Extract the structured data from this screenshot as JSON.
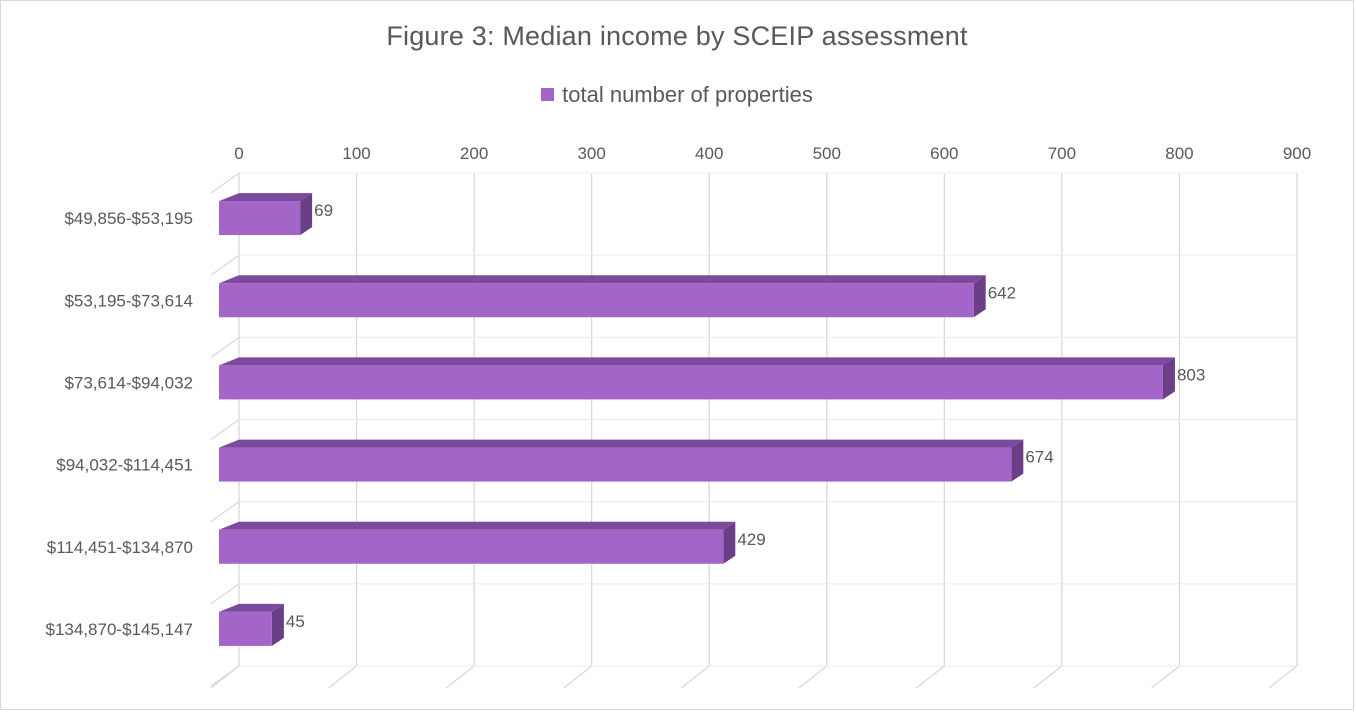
{
  "chart_data": {
    "type": "bar",
    "orientation": "horizontal",
    "style": "3d",
    "title": "Figure 3: Median income by SCEIP assessment",
    "categories": [
      "$49,856-$53,195",
      "$53,195-$73,614",
      "$73,614-$94,032",
      "$94,032-$114,451",
      "$114,451-$134,870",
      "$134,870-$145,147"
    ],
    "series": [
      {
        "name": "total number of properties",
        "values": [
          69,
          642,
          803,
          674,
          429,
          45
        ],
        "color": "#a365c8"
      }
    ],
    "xlim": [
      0,
      900
    ],
    "x_ticks": [
      "0",
      "100",
      "200",
      "300",
      "400",
      "500",
      "600",
      "700",
      "800",
      "900"
    ],
    "x_axis_position": "top",
    "data_labels": [
      "69",
      "642",
      "803",
      "674",
      "429",
      "45"
    ],
    "grid": true,
    "legend_position": "top",
    "colors": {
      "bar_front": "#a365c8",
      "bar_top": "#7b4a9c",
      "bar_side": "#6a3f87",
      "gridline": "#d9d9d9",
      "text": "#595959"
    }
  }
}
